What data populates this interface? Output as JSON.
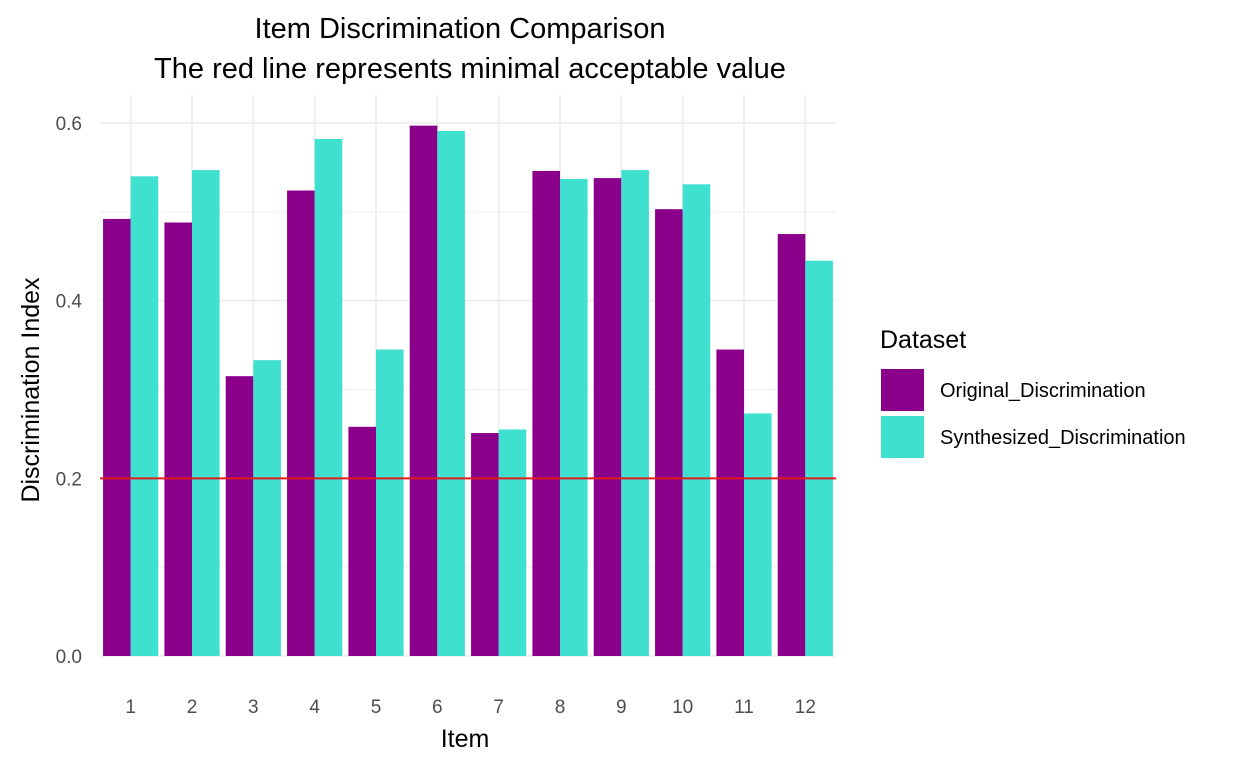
{
  "chart_data": {
    "type": "bar",
    "title": "Item Discrimination Comparison",
    "subtitle": "The red line represents minimal acceptable value",
    "xlabel": "Item",
    "ylabel": "Discrimination Index",
    "categories": [
      "1",
      "2",
      "3",
      "4",
      "5",
      "6",
      "7",
      "8",
      "9",
      "10",
      "11",
      "12"
    ],
    "series": [
      {
        "name": "Original_Discrimination",
        "color": "#8B008B",
        "values": [
          0.492,
          0.488,
          0.315,
          0.524,
          0.258,
          0.597,
          0.251,
          0.546,
          0.538,
          0.503,
          0.345,
          0.475
        ]
      },
      {
        "name": "Synthesized_Discrimination",
        "color": "#40E0D0",
        "values": [
          0.54,
          0.547,
          0.333,
          0.582,
          0.345,
          0.591,
          0.255,
          0.537,
          0.547,
          0.531,
          0.273,
          0.445
        ]
      }
    ],
    "ylim": [
      0,
      0.6
    ],
    "yticks": [
      0.0,
      0.2,
      0.4,
      0.6
    ],
    "ytick_labels": [
      "0.0",
      "0.2",
      "0.4",
      "0.6"
    ],
    "reference_line": {
      "value": 0.2,
      "color": "#E31A1C"
    },
    "legend": {
      "title": "Dataset",
      "position": "right"
    },
    "grid": true
  }
}
